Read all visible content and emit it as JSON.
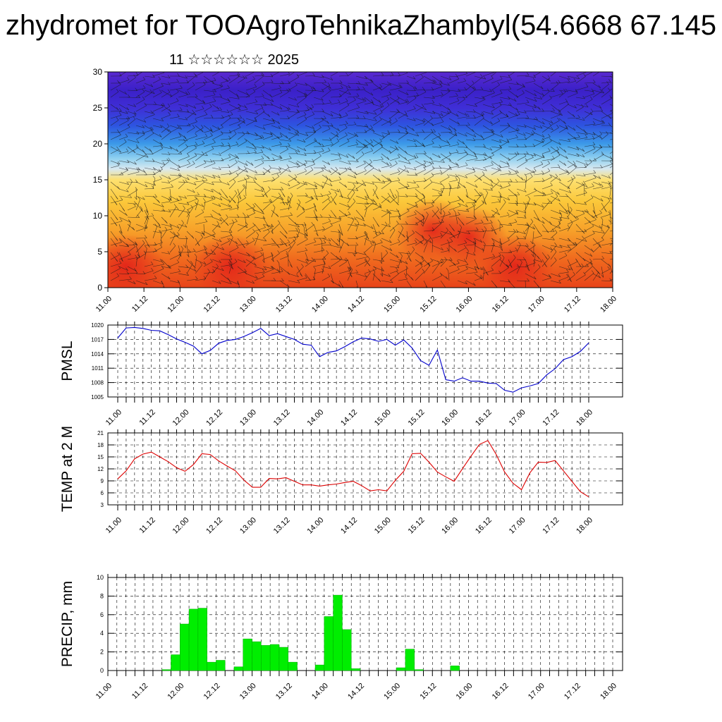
{
  "header": {
    "title": "zhydromet for TOOAgroTehnikaZhambyl(54.6668 67.145",
    "subtitle": "11 ☆☆☆☆☆☆ 2025"
  },
  "colors": {
    "pmsl_line": "#0000cc",
    "temp_line": "#dd0000",
    "precip_bar": "#00ee00",
    "precip_bar_edge": "#00aa00",
    "frame": "#000000",
    "gridline": "#000000"
  },
  "chart_data": [
    {
      "id": "crosssection",
      "type": "heatmap",
      "ylim": [
        0,
        30
      ],
      "yticks": [
        "0",
        "5",
        "10",
        "15",
        "20",
        "25",
        "30"
      ],
      "xticks": [
        "11.00",
        "11.12",
        "12.00",
        "12.12",
        "13.00",
        "13.12",
        "14.00",
        "14.12",
        "15.00",
        "15.12",
        "16.00",
        "16.12",
        "17.00",
        "17.12",
        "18.00"
      ],
      "color_bands": [
        {
          "level": 0,
          "color": "#e8441a"
        },
        {
          "level": 4,
          "color": "#f06a1e"
        },
        {
          "level": 8,
          "color": "#f7a22a"
        },
        {
          "level": 12,
          "color": "#fbc83a"
        },
        {
          "level": 15,
          "color": "#fde070"
        },
        {
          "level": 16.5,
          "color": "#d8e8f0"
        },
        {
          "level": 18,
          "color": "#8fd0f0"
        },
        {
          "level": 20,
          "color": "#3c9ae8"
        },
        {
          "level": 22.5,
          "color": "#2d55e0"
        },
        {
          "level": 25,
          "color": "#3f2ed6"
        },
        {
          "level": 27.5,
          "color": "#3b20c8"
        },
        {
          "level": 30,
          "color": "#5a2ad0"
        }
      ],
      "hot_spots": [
        {
          "x": 0.5,
          "y": 3,
          "color": "#e8241a"
        },
        {
          "x": 3.4,
          "y": 3,
          "color": "#e83a1a"
        },
        {
          "x": 9.0,
          "y": 8,
          "color": "#e8381a"
        },
        {
          "x": 10.0,
          "y": 7,
          "color": "#e6301a"
        },
        {
          "x": 11.3,
          "y": 3,
          "color": "#e62a1a"
        }
      ],
      "wind_barbs": true
    },
    {
      "id": "pmsl",
      "type": "line",
      "ylabel": "PMSL",
      "ylim": [
        1005,
        1020
      ],
      "yticks": [
        "1005",
        "1008",
        "1011",
        "1014",
        "1017",
        "1020"
      ],
      "xticks": [
        "11.00",
        "11.12",
        "12.00",
        "12.12",
        "13.00",
        "13.12",
        "14.00",
        "14.12",
        "15.00",
        "15.12",
        "16.00",
        "16.12",
        "17.00",
        "17.12",
        "18.00"
      ],
      "x": [
        0,
        1,
        2,
        3,
        4,
        5,
        6,
        7,
        8,
        9,
        10,
        11,
        12,
        13,
        14,
        15,
        16,
        17,
        18,
        19,
        20,
        21,
        22,
        23,
        24,
        25,
        26,
        27,
        28,
        29,
        30,
        31,
        32,
        33,
        34,
        35,
        36,
        37,
        38,
        39,
        40,
        41,
        42,
        43,
        44,
        45,
        46,
        47,
        48,
        49,
        50,
        51,
        52,
        53,
        54,
        55,
        56
      ],
      "series": [
        {
          "values": [
            1017.3,
            1019.4,
            1019.5,
            1019.3,
            1018.9,
            1018.8,
            1018.0,
            1017.1,
            1016.4,
            1015.6,
            1014.0,
            1014.7,
            1016.2,
            1016.8,
            1017.0,
            1017.6,
            1018.4,
            1019.3,
            1017.8,
            1018.2,
            1017.6,
            1017.0,
            1016.0,
            1015.8,
            1013.4,
            1014.3,
            1014.6,
            1015.5,
            1016.5,
            1017.3,
            1017.1,
            1016.6,
            1017.0,
            1015.8,
            1016.9,
            1015.2,
            1012.6,
            1011.6,
            1014.8,
            1008.6,
            1008.3,
            1009.0,
            1008.3,
            1008.3,
            1007.9,
            1007.8,
            1006.4,
            1006.0,
            1006.9,
            1007.3,
            1007.8,
            1009.6,
            1010.9,
            1012.8,
            1013.4,
            1014.5,
            1016.3
          ]
        }
      ]
    },
    {
      "id": "temp",
      "type": "line",
      "ylabel": "TEMP at 2 M",
      "ylim": [
        3,
        21
      ],
      "yticks": [
        "3",
        "6",
        "9",
        "12",
        "15",
        "18",
        "21"
      ],
      "xticks": [
        "11.00",
        "11.12",
        "12.00",
        "12.12",
        "13.00",
        "13.12",
        "14.00",
        "14.12",
        "15.00",
        "15.12",
        "16.00",
        "16.12",
        "17.00",
        "17.12",
        "18.00"
      ],
      "x": [
        0,
        1,
        2,
        3,
        4,
        5,
        6,
        7,
        8,
        9,
        10,
        11,
        12,
        13,
        14,
        15,
        16,
        17,
        18,
        19,
        20,
        21,
        22,
        23,
        24,
        25,
        26,
        27,
        28,
        29,
        30,
        31,
        32,
        33,
        34,
        35,
        36,
        37,
        38,
        39,
        40,
        41,
        42,
        43,
        44,
        45,
        46,
        47,
        48,
        49,
        50,
        51,
        52,
        53,
        54,
        55,
        56
      ],
      "series": [
        {
          "values": [
            9.5,
            11.5,
            14.5,
            15.7,
            16.2,
            15.0,
            13.8,
            12.3,
            11.4,
            13.1,
            15.8,
            15.6,
            14.0,
            12.7,
            11.5,
            9.2,
            7.4,
            7.4,
            9.6,
            9.5,
            9.8,
            8.9,
            8.0,
            8.0,
            7.7,
            8.0,
            8.2,
            8.6,
            8.9,
            7.8,
            6.5,
            6.8,
            6.5,
            9.1,
            11.4,
            15.8,
            15.9,
            13.7,
            11.2,
            10.0,
            8.9,
            12.1,
            15.2,
            18.1,
            19.1,
            15.6,
            11.2,
            8.4,
            6.8,
            11.0,
            13.7,
            13.6,
            14.1,
            11.5,
            8.9,
            6.3,
            5.0
          ]
        }
      ]
    },
    {
      "id": "precip",
      "type": "bar",
      "ylabel": "PRECIP, mm",
      "ylim": [
        0,
        10
      ],
      "yticks": [
        "0",
        "2",
        "4",
        "6",
        "8",
        "10"
      ],
      "xticks": [
        "11.00",
        "11.12",
        "12.00",
        "12.12",
        "13.00",
        "13.12",
        "14.00",
        "14.12",
        "15.00",
        "15.12",
        "16.00",
        "16.12",
        "17.00",
        "17.12",
        "18.00"
      ],
      "x": [
        0,
        1,
        2,
        3,
        4,
        5,
        6,
        7,
        8,
        9,
        10,
        11,
        12,
        13,
        14,
        15,
        16,
        17,
        18,
        19,
        20,
        21,
        22,
        23,
        24,
        25,
        26,
        27,
        28,
        29,
        30,
        31,
        32,
        33,
        34,
        35,
        36,
        37,
        38,
        39,
        40,
        41,
        42,
        43,
        44,
        45,
        46,
        47,
        48,
        49,
        50,
        51,
        52,
        53,
        54,
        55
      ],
      "series": [
        {
          "values": [
            0,
            0,
            0,
            0,
            0,
            0,
            0.1,
            1.7,
            5.0,
            6.6,
            6.7,
            0.9,
            1.1,
            0,
            0.4,
            3.4,
            3.1,
            2.7,
            2.8,
            2.5,
            0.9,
            0,
            0,
            0.6,
            5.8,
            8.1,
            4.4,
            0.2,
            0,
            0,
            0,
            0,
            0.3,
            2.3,
            0.1,
            0,
            0,
            0,
            0.5,
            0,
            0,
            0,
            0,
            0,
            0,
            0,
            0,
            0,
            0,
            0,
            0,
            0,
            0,
            0,
            0,
            0
          ]
        }
      ]
    }
  ]
}
